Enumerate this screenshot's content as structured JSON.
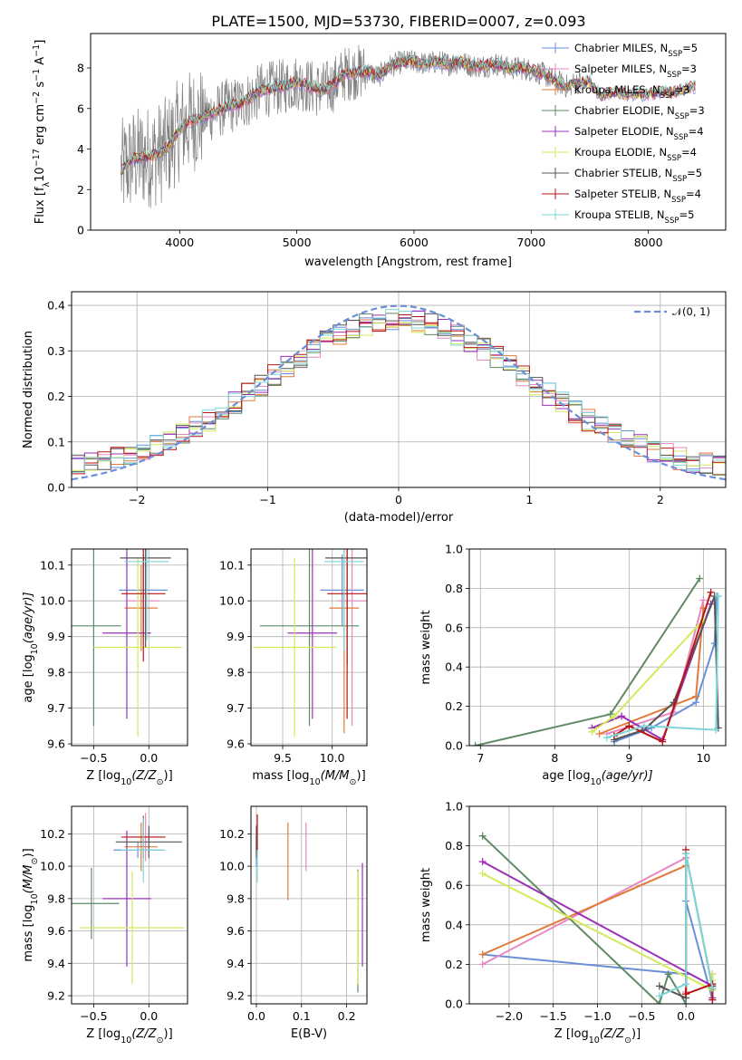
{
  "figure_title": "PLATE=1500, MJD=53730, FIBERID=0007, z=0.093",
  "colors": {
    "Chabrier MILES": "#6a8fd8",
    "Salpeter MILES": "#e78ac3",
    "Kroupa MILES": "#e07b39",
    "Chabrier ELODIE": "#5f8a65",
    "Salpeter ELODIE": "#9b30b8",
    "Kroupa ELODIE": "#d4ea5a",
    "Chabrier STELIB": "#555555",
    "Salpeter STELIB": "#b81414",
    "Kroupa STELIB": "#7fd6d6"
  },
  "chart_data": [
    {
      "id": "spectrum",
      "type": "line",
      "xlabel": "wavelength [Angstrom, rest frame]",
      "ylabel_parts": [
        "Flux [f",
        "λ",
        "10",
        "−17",
        " erg cm",
        "−2",
        " s",
        "−1",
        " A",
        "−1",
        "]"
      ],
      "xlim": [
        3240,
        8660
      ],
      "ylim": [
        0,
        9.7
      ],
      "xticks": [
        4000,
        5000,
        6000,
        7000,
        8000
      ],
      "yticks": [
        0,
        2,
        4,
        6,
        8
      ],
      "legend_position": "upper-right",
      "data_color": "#808080",
      "continuum": {
        "x": [
          3500,
          3600,
          3700,
          3800,
          3900,
          4000,
          4100,
          4200,
          4300,
          4400,
          4500,
          4600,
          4700,
          4800,
          4900,
          5000,
          5100,
          5200,
          5300,
          5400,
          5500,
          5600,
          5700,
          5800,
          5900,
          6000,
          6100,
          6200,
          6300,
          6400,
          6500,
          6600,
          6700,
          6800,
          6900,
          7000,
          7100,
          7200,
          7300,
          7400,
          7500,
          7600,
          7700,
          7800,
          7900,
          8000,
          8100,
          8200,
          8300,
          8400
        ],
        "y": [
          2.9,
          3.5,
          3.6,
          3.7,
          4.1,
          5.0,
          5.4,
          5.6,
          5.8,
          6.1,
          6.2,
          6.5,
          6.9,
          7.0,
          7.1,
          7.3,
          7.1,
          6.9,
          7.1,
          7.7,
          7.8,
          7.8,
          7.6,
          8.1,
          8.3,
          8.3,
          8.2,
          8.3,
          8.2,
          8.3,
          8.1,
          8.1,
          8.2,
          8.0,
          8.0,
          7.9,
          7.7,
          7.4,
          7.1,
          7.3,
          7.3,
          6.6,
          6.8,
          6.7,
          6.7,
          6.7,
          6.8,
          6.8,
          6.9,
          7.1
        ]
      },
      "legend": [
        {
          "label_base": "Chabrier MILES, N",
          "sub": "SSP",
          "tail": "=5"
        },
        {
          "label_base": "Salpeter MILES, N",
          "sub": "SSP",
          "tail": "=3"
        },
        {
          "label_base": "Kroupa MILES, N",
          "sub": "SSP",
          "tail": "=3"
        },
        {
          "label_base": "Chabrier ELODIE, N",
          "sub": "SSP",
          "tail": "=3"
        },
        {
          "label_base": "Salpeter ELODIE, N",
          "sub": "SSP",
          "tail": "=4"
        },
        {
          "label_base": "Kroupa ELODIE, N",
          "sub": "SSP",
          "tail": "=4"
        },
        {
          "label_base": "Chabrier STELIB, N",
          "sub": "SSP",
          "tail": "=5"
        },
        {
          "label_base": "Salpeter STELIB, N",
          "sub": "SSP",
          "tail": "=4"
        },
        {
          "label_base": "Kroupa STELIB, N",
          "sub": "SSP",
          "tail": "=5"
        }
      ]
    },
    {
      "id": "residuals",
      "type": "histogram",
      "xlabel": "(data-model)/error",
      "ylabel": "Normed distribution",
      "xlim": [
        -2.5,
        2.5
      ],
      "ylim": [
        0,
        0.43
      ],
      "xticks": [
        -2,
        -1,
        0,
        1,
        2
      ],
      "yticks": [
        0.0,
        0.1,
        0.2,
        0.3,
        0.4
      ],
      "grid": true,
      "bin_width": 0.1,
      "gaussian_label": "𝒩(0, 1)",
      "gaussian_color": "#6a8fd8",
      "legend_position": "upper-right"
    },
    {
      "id": "age_vs_Z",
      "type": "errorbar",
      "xlabel_parts": [
        "Z [log",
        "10",
        "(Z/Z",
        "⊙",
        ")]"
      ],
      "ylabel_parts": [
        "age  [log",
        "10",
        "(age/yr)]"
      ],
      "xlim": [
        -0.7,
        0.35
      ],
      "ylim": [
        9.595,
        10.145
      ],
      "xticks": [
        -0.5,
        0.0
      ],
      "yticks": [
        9.6,
        9.7,
        9.8,
        9.9,
        10.0,
        10.1
      ],
      "grid": true,
      "points": [
        {
          "model": "Chabrier MILES",
          "x": -0.05,
          "xerr": 0.22,
          "y": 10.03,
          "yerr": 0.1
        },
        {
          "model": "Salpeter MILES",
          "x": -0.05,
          "xerr": 0.15,
          "y": 10.0,
          "yerr": 0.1
        },
        {
          "model": "Kroupa MILES",
          "x": -0.07,
          "xerr": 0.15,
          "y": 9.98,
          "yerr": 0.12
        },
        {
          "model": "Chabrier ELODIE",
          "x": -0.5,
          "xerr": 0.25,
          "y": 9.93,
          "yerr": 0.28
        },
        {
          "model": "Salpeter ELODIE",
          "x": -0.2,
          "xerr": 0.22,
          "y": 9.91,
          "yerr": 0.24
        },
        {
          "model": "Kroupa ELODIE",
          "x": -0.1,
          "xerr": 0.4,
          "y": 9.87,
          "yerr": 0.25
        },
        {
          "model": "Chabrier STELIB",
          "x": -0.03,
          "xerr": 0.23,
          "y": 10.12,
          "yerr": 0.25
        },
        {
          "model": "Salpeter STELIB",
          "x": -0.05,
          "xerr": 0.2,
          "y": 10.02,
          "yerr": 0.19
        },
        {
          "model": "Kroupa STELIB",
          "x": -0.02,
          "xerr": 0.2,
          "y": 10.11,
          "yerr": 0.22
        }
      ]
    },
    {
      "id": "age_vs_mass",
      "type": "errorbar",
      "xlabel_parts": [
        "mass [log",
        "10",
        "(M/M",
        "⊙",
        ")]"
      ],
      "xlim": [
        9.18,
        10.35
      ],
      "ylim": [
        9.595,
        10.145
      ],
      "xticks": [
        9.5,
        10.0
      ],
      "yticks": [
        9.6,
        9.7,
        9.8,
        9.9,
        10.0,
        10.1
      ],
      "grid": true,
      "points": [
        {
          "model": "Chabrier MILES",
          "x": 10.1,
          "xerr": 0.22,
          "y": 10.03,
          "yerr": 0.1
        },
        {
          "model": "Salpeter MILES",
          "x": 10.2,
          "xerr": 0.15,
          "y": 10.0,
          "yerr": 0.35
        },
        {
          "model": "Kroupa MILES",
          "x": 10.12,
          "xerr": 0.15,
          "y": 9.98,
          "yerr": 0.35
        },
        {
          "model": "Chabrier ELODIE",
          "x": 9.77,
          "xerr": 0.5,
          "y": 9.93,
          "yerr": 0.28
        },
        {
          "model": "Salpeter ELODIE",
          "x": 9.8,
          "xerr": 0.25,
          "y": 9.91,
          "yerr": 0.24
        },
        {
          "model": "Kroupa ELODIE",
          "x": 9.62,
          "xerr": 0.42,
          "y": 9.87,
          "yerr": 0.25
        },
        {
          "model": "Chabrier STELIB",
          "x": 10.15,
          "xerr": 0.22,
          "y": 10.12,
          "yerr": 0.3
        },
        {
          "model": "Salpeter STELIB",
          "x": 10.15,
          "xerr": 0.2,
          "y": 10.02,
          "yerr": 0.35
        },
        {
          "model": "Kroupa STELIB",
          "x": 10.12,
          "xerr": 0.2,
          "y": 10.11,
          "yerr": 0.25
        }
      ]
    },
    {
      "id": "weight_vs_age",
      "type": "line",
      "xlabel_parts": [
        "age  [log",
        "10",
        "(age/yr)]"
      ],
      "ylabel": "mass weight",
      "xlim": [
        6.85,
        10.3
      ],
      "ylim": [
        0,
        1.0
      ],
      "xticks": [
        7,
        8,
        9,
        10
      ],
      "yticks": [
        0.0,
        0.2,
        0.4,
        0.6,
        0.8,
        1.0
      ],
      "grid": true,
      "series": [
        {
          "model": "Chabrier MILES",
          "x": [
            8.8,
            9.3,
            9.9,
            10.15,
            10.18
          ],
          "y": [
            0.02,
            0.09,
            0.22,
            0.52,
            0.76
          ]
        },
        {
          "model": "Salpeter MILES",
          "x": [
            8.7,
            9.6,
            10.0
          ],
          "y": [
            0.06,
            0.17,
            0.74
          ]
        },
        {
          "model": "Kroupa MILES",
          "x": [
            8.6,
            9.9,
            10.0
          ],
          "y": [
            0.06,
            0.25,
            0.7
          ]
        },
        {
          "model": "Chabrier ELODIE",
          "x": [
            6.93,
            8.75,
            9.95
          ],
          "y": [
            0.0,
            0.16,
            0.85
          ]
        },
        {
          "model": "Salpeter ELODIE",
          "x": [
            8.5,
            8.9,
            9.45,
            10.1
          ],
          "y": [
            0.09,
            0.15,
            0.03,
            0.72
          ]
        },
        {
          "model": "Kroupa ELODIE",
          "x": [
            8.5,
            8.8,
            10.0
          ],
          "y": [
            0.07,
            0.15,
            0.64
          ]
        },
        {
          "model": "Chabrier STELIB",
          "x": [
            8.8,
            9.2,
            9.6,
            10.15,
            10.2
          ],
          "y": [
            0.03,
            0.08,
            0.22,
            0.76,
            0.09
          ]
        },
        {
          "model": "Salpeter STELIB",
          "x": [
            8.8,
            9.0,
            9.45,
            10.1
          ],
          "y": [
            0.05,
            0.1,
            0.02,
            0.78
          ]
        },
        {
          "model": "Kroupa STELIB",
          "x": [
            8.7,
            9.2,
            10.17,
            10.2
          ],
          "y": [
            0.04,
            0.1,
            0.08,
            0.76
          ]
        }
      ]
    },
    {
      "id": "mass_vs_Z",
      "type": "errorbar",
      "xlabel_parts": [
        "Z [log",
        "10",
        "(Z/Z",
        "⊙",
        ")]"
      ],
      "ylabel_parts": [
        "mass [log",
        "10",
        "(M/M",
        "⊙",
        ")]"
      ],
      "xlim": [
        -0.7,
        0.35
      ],
      "ylim": [
        9.15,
        10.37
      ],
      "xticks": [
        -0.5,
        0.0
      ],
      "yticks": [
        9.2,
        9.4,
        9.6,
        9.8,
        10.0,
        10.2
      ],
      "grid": true,
      "points": [
        {
          "model": "Chabrier MILES",
          "x": -0.1,
          "xerr": 0.22,
          "y": 10.1,
          "yerr": 0.05
        },
        {
          "model": "Salpeter MILES",
          "x": -0.03,
          "xerr": 0.15,
          "y": 10.18,
          "yerr": 0.15
        },
        {
          "model": "Kroupa MILES",
          "x": -0.07,
          "xerr": 0.15,
          "y": 10.12,
          "yerr": 0.15
        },
        {
          "model": "Chabrier ELODIE",
          "x": -0.52,
          "xerr": 0.25,
          "y": 9.77,
          "yerr": 0.22
        },
        {
          "model": "Salpeter ELODIE",
          "x": -0.2,
          "xerr": 0.22,
          "y": 9.8,
          "yerr": 0.42
        },
        {
          "model": "Kroupa ELODIE",
          "x": -0.15,
          "xerr": 0.47,
          "y": 9.62,
          "yerr": 0.35
        },
        {
          "model": "Chabrier STELIB",
          "x": 0.0,
          "xerr": 0.3,
          "y": 10.15,
          "yerr": 0.1
        },
        {
          "model": "Salpeter STELIB",
          "x": -0.05,
          "xerr": 0.2,
          "y": 10.18,
          "yerr": 0.13
        },
        {
          "model": "Kroupa STELIB",
          "x": -0.05,
          "xerr": 0.2,
          "y": 10.1,
          "yerr": 0.2
        }
      ]
    },
    {
      "id": "mass_vs_EBV",
      "type": "errorbar",
      "xlabel": "E(B-V)",
      "xlim": [
        -0.012,
        0.245
      ],
      "ylim": [
        9.15,
        10.37
      ],
      "xticks": [
        0.0,
        0.1,
        0.2
      ],
      "yticks": [
        9.2,
        9.4,
        9.6,
        9.8,
        10.0,
        10.2
      ],
      "grid": true,
      "points": [
        {
          "model": "Chabrier MILES",
          "x": 0.0,
          "xerr": 0.0,
          "y": 10.1,
          "yerr": 0.1
        },
        {
          "model": "Salpeter MILES",
          "x": 0.11,
          "xerr": 0.0,
          "y": 10.12,
          "yerr": 0.15
        },
        {
          "model": "Kroupa MILES",
          "x": 0.07,
          "xerr": 0.0,
          "y": 10.03,
          "yerr": 0.24
        },
        {
          "model": "Chabrier ELODIE",
          "x": 0.225,
          "xerr": 0.0,
          "y": 9.6,
          "yerr": 0.38
        },
        {
          "model": "Salpeter ELODIE",
          "x": 0.235,
          "xerr": 0.0,
          "y": 9.7,
          "yerr": 0.32
        },
        {
          "model": "Kroupa ELODIE",
          "x": 0.225,
          "xerr": 0.0,
          "y": 9.62,
          "yerr": 0.35
        },
        {
          "model": "Chabrier STELIB",
          "x": 0.0,
          "xerr": 0.0,
          "y": 10.15,
          "yerr": 0.1
        },
        {
          "model": "Salpeter STELIB",
          "x": 0.002,
          "xerr": 0.0,
          "y": 10.2,
          "yerr": 0.12
        },
        {
          "model": "Kroupa STELIB",
          "x": 0.002,
          "xerr": 0.0,
          "y": 10.0,
          "yerr": 0.1
        }
      ]
    },
    {
      "id": "weight_vs_Z",
      "type": "line",
      "xlabel_parts": [
        "Z [log",
        "10",
        "(Z/Z",
        "⊙",
        ")]"
      ],
      "ylabel": "mass weight",
      "xlim": [
        -2.45,
        0.45
      ],
      "ylim": [
        0,
        1.0
      ],
      "xticks": [
        -2.0,
        -1.5,
        -1.0,
        -0.5,
        0.0
      ],
      "yticks": [
        0.0,
        0.2,
        0.4,
        0.6,
        0.8,
        1.0
      ],
      "grid": true,
      "series": [
        {
          "model": "Chabrier MILES",
          "x": [
            -2.3,
            0.0,
            0.0,
            0.3,
            0.3
          ],
          "y": [
            0.25,
            0.15,
            0.52,
            0.02,
            0.07
          ]
        },
        {
          "model": "Salpeter MILES",
          "x": [
            -2.3,
            0.0,
            0.0
          ],
          "y": [
            0.2,
            0.74,
            0.06
          ]
        },
        {
          "model": "Kroupa MILES",
          "x": [
            -2.3,
            0.0,
            0.0
          ],
          "y": [
            0.25,
            0.7,
            0.05
          ]
        },
        {
          "model": "Chabrier ELODIE",
          "x": [
            -2.3,
            -0.3,
            -0.2,
            0.0
          ],
          "y": [
            0.85,
            0.0,
            0.15,
            0.0
          ]
        },
        {
          "model": "Salpeter ELODIE",
          "x": [
            -2.3,
            0.3,
            0.3,
            0.3
          ],
          "y": [
            0.72,
            0.09,
            0.03,
            0.15
          ]
        },
        {
          "model": "Kroupa ELODIE",
          "x": [
            -2.3,
            0.3,
            0.3,
            0.3
          ],
          "y": [
            0.66,
            0.07,
            0.15,
            0.12
          ]
        },
        {
          "model": "Chabrier STELIB",
          "x": [
            -0.3,
            0.0,
            0.0,
            0.3,
            0.3
          ],
          "y": [
            0.09,
            0.03,
            0.76,
            0.08,
            0.09
          ]
        },
        {
          "model": "Salpeter STELIB",
          "x": [
            0.0,
            0.0,
            0.3,
            0.3
          ],
          "y": [
            0.78,
            0.05,
            0.1,
            0.02
          ]
        },
        {
          "model": "Kroupa STELIB",
          "x": [
            -0.3,
            0.0,
            0.0,
            0.3
          ],
          "y": [
            0.04,
            0.1,
            0.76,
            0.08
          ]
        }
      ]
    }
  ]
}
